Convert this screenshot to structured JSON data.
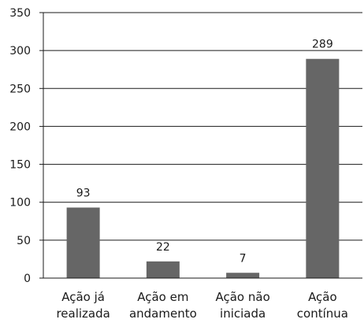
{
  "chart_data": {
    "type": "bar",
    "categories": [
      [
        "Ação já",
        "realizada"
      ],
      [
        "Ação em",
        "andamento"
      ],
      [
        "Ação não",
        "iniciada"
      ],
      [
        "Ação",
        "contínua"
      ]
    ],
    "values": [
      93,
      22,
      7,
      289
    ],
    "data_labels": [
      "93",
      "22",
      "7",
      "289"
    ],
    "y_ticks": [
      "0",
      "50",
      "100",
      "150",
      "200",
      "250",
      "300",
      "350"
    ],
    "ylim": [
      0,
      350
    ],
    "grid": true,
    "bar_color": "#666666",
    "grid_color": "#1a1a1a",
    "axis_color": "#1a1a1a",
    "text_color": "#1a1a1a"
  }
}
